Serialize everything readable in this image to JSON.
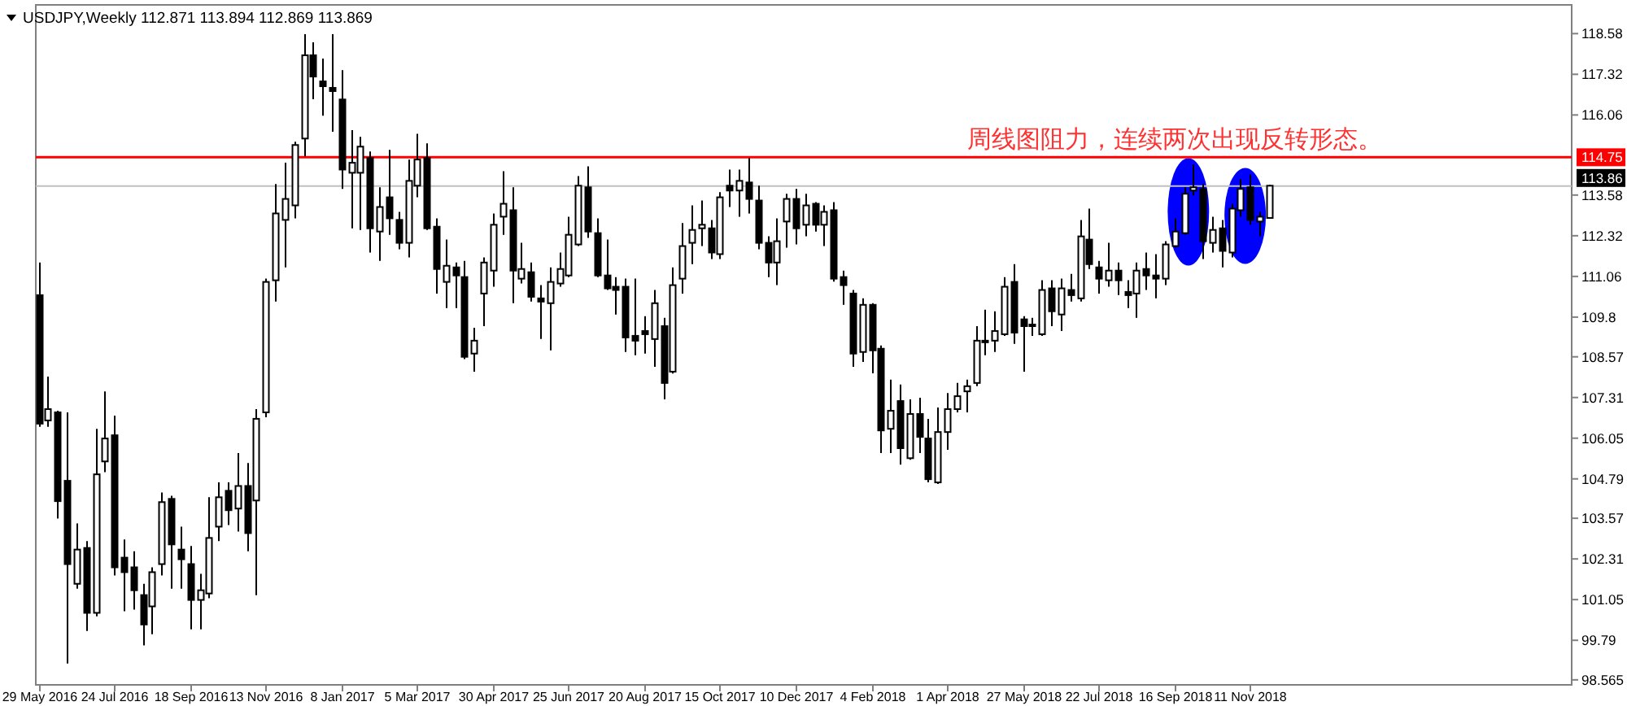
{
  "chart_data": {
    "type": "candlestick",
    "title": "USDJPY,Weekly 112.871 113.894 112.869 113.869",
    "x": [
      "2016-05-29",
      "2016-06-05",
      "2016-06-12",
      "2016-06-19",
      "2016-06-26",
      "2016-07-03",
      "2016-07-10",
      "2016-07-17",
      "2016-07-24",
      "2016-07-31",
      "2016-08-07",
      "2016-08-14",
      "2016-08-21",
      "2016-08-28",
      "2016-09-04",
      "2016-09-11",
      "2016-09-18",
      "2016-09-25",
      "2016-10-02",
      "2016-10-09",
      "2016-10-16",
      "2016-10-23",
      "2016-10-30",
      "2016-11-06",
      "2016-11-13",
      "2016-11-20",
      "2016-11-27",
      "2016-12-04",
      "2016-12-11",
      "2016-12-18",
      "2016-12-25",
      "2017-01-01",
      "2017-01-08",
      "2017-01-15",
      "2017-01-22",
      "2017-01-29",
      "2017-02-05",
      "2017-02-12",
      "2017-02-19",
      "2017-02-26",
      "2017-03-05",
      "2017-03-12",
      "2017-03-19",
      "2017-03-26",
      "2017-04-02",
      "2017-04-09",
      "2017-04-16",
      "2017-04-23",
      "2017-04-30",
      "2017-05-07",
      "2017-05-14",
      "2017-05-21",
      "2017-05-28",
      "2017-06-04",
      "2017-06-11",
      "2017-06-18",
      "2017-06-25",
      "2017-07-02",
      "2017-07-09",
      "2017-07-16",
      "2017-07-23",
      "2017-07-30",
      "2017-08-06",
      "2017-08-13",
      "2017-08-20",
      "2017-08-27",
      "2017-09-03",
      "2017-09-10",
      "2017-09-17",
      "2017-09-24",
      "2017-10-01",
      "2017-10-08",
      "2017-10-15",
      "2017-10-22",
      "2017-10-29",
      "2017-11-05",
      "2017-11-12",
      "2017-11-19",
      "2017-11-26",
      "2017-12-03",
      "2017-12-10",
      "2017-12-17",
      "2017-12-24",
      "2017-12-31",
      "2018-01-07",
      "2018-01-14",
      "2018-01-21",
      "2018-01-28",
      "2018-02-04",
      "2018-02-11",
      "2018-02-18",
      "2018-02-25",
      "2018-03-04",
      "2018-03-11",
      "2018-03-18",
      "2018-03-25",
      "2018-04-01",
      "2018-04-08",
      "2018-04-15",
      "2018-04-22",
      "2018-04-29",
      "2018-05-06",
      "2018-05-13",
      "2018-05-20",
      "2018-05-27",
      "2018-06-03",
      "2018-06-10",
      "2018-06-17",
      "2018-06-24",
      "2018-07-01",
      "2018-07-08",
      "2018-07-15",
      "2018-07-22",
      "2018-07-29",
      "2018-08-05",
      "2018-08-12",
      "2018-08-19",
      "2018-08-26",
      "2018-09-02",
      "2018-09-09",
      "2018-09-16",
      "2018-09-23",
      "2018-09-30",
      "2018-10-07",
      "2018-10-14",
      "2018-10-21",
      "2018-10-28",
      "2018-11-04",
      "2018-11-11",
      "2018-11-18",
      "2018-11-25"
    ],
    "ohlc": [
      [
        110.48,
        111.49,
        106.4,
        106.5
      ],
      [
        106.6,
        107.96,
        106.4,
        106.95
      ],
      [
        106.85,
        106.9,
        103.56,
        104.1
      ],
      [
        104.73,
        106.85,
        99.07,
        102.15
      ],
      [
        101.54,
        103.41,
        101.39,
        102.6
      ],
      [
        102.65,
        102.86,
        100.08,
        100.64
      ],
      [
        100.64,
        106.34,
        100.53,
        104.93
      ],
      [
        105.33,
        107.5,
        105.0,
        106.04
      ],
      [
        106.14,
        106.75,
        101.8,
        102.05
      ],
      [
        102.35,
        102.91,
        100.69,
        101.9
      ],
      [
        102.05,
        102.55,
        100.74,
        101.34
      ],
      [
        101.19,
        101.54,
        99.63,
        100.28
      ],
      [
        100.84,
        102.05,
        99.98,
        101.9
      ],
      [
        102.15,
        104.37,
        101.8,
        104.07
      ],
      [
        104.17,
        104.27,
        101.39,
        102.76
      ],
      [
        102.6,
        103.31,
        101.39,
        102.3
      ],
      [
        102.15,
        102.71,
        100.13,
        101.04
      ],
      [
        101.04,
        101.85,
        100.13,
        101.34
      ],
      [
        101.24,
        104.22,
        101.09,
        102.96
      ],
      [
        103.31,
        104.68,
        102.86,
        104.22
      ],
      [
        104.42,
        104.68,
        103.36,
        103.82
      ],
      [
        103.87,
        105.59,
        103.16,
        104.57
      ],
      [
        104.57,
        105.28,
        102.55,
        103.11
      ],
      [
        104.12,
        106.95,
        101.19,
        106.65
      ],
      [
        106.85,
        110.99,
        106.7,
        110.89
      ],
      [
        110.94,
        113.92,
        110.28,
        113.01
      ],
      [
        112.81,
        114.58,
        111.34,
        113.46
      ],
      [
        113.26,
        115.23,
        112.86,
        115.13
      ],
      [
        115.33,
        118.56,
        114.78,
        117.91
      ],
      [
        117.91,
        118.31,
        116.55,
        117.25
      ],
      [
        117.1,
        117.81,
        116.04,
        116.95
      ],
      [
        116.9,
        118.56,
        115.54,
        116.8
      ],
      [
        116.54,
        117.45,
        113.77,
        114.37
      ],
      [
        114.27,
        115.59,
        112.55,
        114.58
      ],
      [
        114.27,
        115.38,
        112.5,
        115.08
      ],
      [
        114.73,
        114.93,
        111.8,
        112.55
      ],
      [
        112.45,
        113.82,
        111.54,
        113.21
      ],
      [
        113.51,
        114.98,
        112.35,
        112.86
      ],
      [
        112.81,
        113.06,
        111.9,
        112.1
      ],
      [
        112.1,
        114.68,
        111.65,
        114.02
      ],
      [
        113.87,
        115.48,
        113.51,
        114.68
      ],
      [
        114.73,
        115.18,
        112.5,
        112.55
      ],
      [
        112.6,
        112.86,
        110.53,
        111.29
      ],
      [
        110.89,
        112.2,
        110.08,
        111.39
      ],
      [
        111.34,
        111.49,
        110.08,
        111.09
      ],
      [
        111.04,
        111.54,
        108.5,
        108.57
      ],
      [
        108.67,
        109.47,
        108.11,
        109.07
      ],
      [
        110.53,
        111.65,
        109.52,
        111.49
      ],
      [
        111.24,
        113.01,
        110.74,
        112.66
      ],
      [
        112.91,
        114.32,
        112.35,
        113.31
      ],
      [
        113.11,
        113.82,
        110.23,
        111.24
      ],
      [
        110.99,
        112.1,
        110.84,
        111.29
      ],
      [
        111.19,
        111.49,
        110.28,
        110.43
      ],
      [
        110.38,
        110.79,
        109.12,
        110.28
      ],
      [
        110.23,
        111.34,
        108.77,
        110.89
      ],
      [
        110.84,
        111.8,
        110.74,
        111.29
      ],
      [
        111.09,
        112.91,
        111.04,
        112.35
      ],
      [
        112.05,
        114.17,
        112.0,
        113.87
      ],
      [
        113.82,
        114.47,
        112.25,
        112.45
      ],
      [
        112.4,
        112.86,
        111.04,
        111.09
      ],
      [
        111.09,
        112.2,
        110.64,
        110.69
      ],
      [
        110.74,
        111.04,
        109.88,
        110.64
      ],
      [
        110.74,
        110.99,
        108.72,
        109.17
      ],
      [
        109.22,
        110.99,
        108.62,
        109.07
      ],
      [
        109.37,
        109.83,
        108.67,
        109.27
      ],
      [
        109.12,
        110.64,
        108.26,
        110.23
      ],
      [
        109.52,
        109.78,
        107.25,
        107.76
      ],
      [
        108.11,
        111.34,
        108.05,
        110.79
      ],
      [
        110.99,
        112.71,
        110.53,
        112.0
      ],
      [
        112.1,
        113.26,
        111.44,
        112.5
      ],
      [
        112.55,
        113.41,
        112.0,
        112.66
      ],
      [
        112.55,
        112.81,
        111.6,
        111.8
      ],
      [
        111.75,
        113.67,
        111.6,
        113.51
      ],
      [
        113.87,
        114.37,
        113.21,
        113.72
      ],
      [
        113.72,
        114.37,
        112.91,
        114.02
      ],
      [
        113.97,
        114.73,
        113.01,
        113.46
      ],
      [
        113.41,
        113.87,
        111.9,
        112.1
      ],
      [
        112.1,
        112.3,
        111.04,
        111.49
      ],
      [
        111.49,
        112.86,
        110.79,
        112.15
      ],
      [
        112.76,
        113.62,
        111.95,
        113.46
      ],
      [
        113.46,
        113.77,
        112.05,
        112.55
      ],
      [
        112.66,
        113.62,
        112.3,
        113.26
      ],
      [
        113.31,
        113.36,
        112.45,
        112.66
      ],
      [
        112.66,
        113.26,
        112.0,
        113.06
      ],
      [
        113.11,
        113.36,
        110.9,
        110.99
      ],
      [
        111.04,
        111.24,
        110.18,
        110.79
      ],
      [
        110.53,
        110.64,
        108.26,
        108.67
      ],
      [
        108.72,
        110.38,
        108.41,
        110.18
      ],
      [
        110.18,
        110.23,
        108.06,
        108.77
      ],
      [
        108.82,
        108.92,
        105.59,
        106.29
      ],
      [
        106.34,
        107.86,
        105.59,
        106.9
      ],
      [
        107.2,
        107.71,
        105.23,
        105.74
      ],
      [
        105.43,
        107.25,
        105.38,
        106.8
      ],
      [
        106.8,
        107.3,
        105.59,
        106.09
      ],
      [
        106.04,
        106.65,
        104.68,
        104.78
      ],
      [
        104.68,
        107.0,
        104.63,
        106.24
      ],
      [
        106.24,
        107.45,
        105.69,
        106.95
      ],
      [
        106.95,
        107.76,
        106.85,
        107.35
      ],
      [
        107.5,
        107.86,
        106.85,
        107.66
      ],
      [
        107.76,
        109.52,
        107.66,
        109.07
      ],
      [
        109.02,
        110.03,
        108.62,
        109.07
      ],
      [
        109.07,
        109.98,
        108.72,
        109.37
      ],
      [
        109.27,
        111.04,
        109.22,
        110.74
      ],
      [
        110.89,
        111.44,
        108.97,
        109.32
      ],
      [
        109.73,
        109.83,
        108.11,
        109.52
      ],
      [
        109.52,
        109.78,
        109.22,
        109.57
      ],
      [
        109.27,
        110.94,
        109.22,
        110.64
      ],
      [
        110.69,
        110.94,
        109.52,
        109.98
      ],
      [
        109.88,
        110.99,
        109.37,
        110.69
      ],
      [
        110.64,
        111.14,
        110.28,
        110.48
      ],
      [
        110.38,
        112.81,
        110.28,
        112.3
      ],
      [
        112.2,
        113.16,
        111.29,
        111.44
      ],
      [
        111.34,
        111.54,
        110.53,
        110.99
      ],
      [
        110.94,
        112.1,
        110.74,
        111.24
      ],
      [
        111.24,
        111.49,
        110.48,
        110.94
      ],
      [
        110.58,
        110.94,
        110.08,
        110.48
      ],
      [
        110.53,
        111.49,
        109.78,
        111.24
      ],
      [
        111.29,
        111.8,
        110.64,
        111.09
      ],
      [
        111.09,
        111.75,
        110.38,
        110.99
      ],
      [
        110.99,
        112.15,
        110.79,
        112.05
      ],
      [
        112.0,
        112.86,
        111.95,
        112.45
      ],
      [
        112.4,
        113.82,
        112.35,
        113.62
      ],
      [
        113.72,
        114.52,
        113.56,
        113.82
      ],
      [
        113.77,
        113.92,
        111.6,
        112.15
      ],
      [
        112.1,
        112.91,
        111.8,
        112.5
      ],
      [
        112.55,
        112.81,
        111.34,
        111.85
      ],
      [
        111.8,
        113.31,
        111.65,
        113.16
      ],
      [
        113.11,
        114.07,
        112.91,
        113.77
      ],
      [
        113.82,
        114.22,
        112.66,
        112.81
      ],
      [
        112.76,
        113.06,
        112.3,
        112.91
      ],
      [
        112.871,
        113.894,
        112.869,
        113.869
      ]
    ],
    "xlim": [
      "2016-05-27",
      "2019-07-07"
    ],
    "ylim": [
      98.41,
      119.47
    ],
    "xticks": [
      {
        "value": "2016-05-29",
        "label": "29 May 2016"
      },
      {
        "value": "2016-07-24",
        "label": "24 Jul 2016"
      },
      {
        "value": "2016-09-18",
        "label": "18 Sep 2016"
      },
      {
        "value": "2016-11-13",
        "label": "13 Nov 2016"
      },
      {
        "value": "2017-01-08",
        "label": "8 Jan 2017"
      },
      {
        "value": "2017-03-05",
        "label": "5 Mar 2017"
      },
      {
        "value": "2017-04-30",
        "label": "30 Apr 2017"
      },
      {
        "value": "2017-06-25",
        "label": "25 Jun 2017"
      },
      {
        "value": "2017-08-20",
        "label": "20 Aug 2017"
      },
      {
        "value": "2017-10-15",
        "label": "15 Oct 2017"
      },
      {
        "value": "2017-12-10",
        "label": "10 Dec 2017"
      },
      {
        "value": "2018-02-04",
        "label": "4 Feb 2018"
      },
      {
        "value": "2018-04-01",
        "label": "1 Apr 2018"
      },
      {
        "value": "2018-05-27",
        "label": "27 May 2018"
      },
      {
        "value": "2018-07-22",
        "label": "22 Jul 2018"
      },
      {
        "value": "2018-09-16",
        "label": "16 Sep 2018"
      },
      {
        "value": "2018-11-11",
        "label": "11 Nov 2018"
      }
    ],
    "yticks": [
      98.565,
      99.79,
      101.05,
      102.31,
      103.57,
      104.79,
      106.05,
      107.31,
      108.57,
      109.8,
      111.06,
      112.32,
      113.58,
      116.06,
      117.32,
      118.58
    ],
    "ref_lines": [
      {
        "axis": "y",
        "value": 114.75,
        "label": "114.75",
        "color": "#ff0000"
      },
      {
        "axis": "y",
        "value": 113.86,
        "label": "113.86",
        "color": "#c0c0c0"
      }
    ],
    "annotations": [
      {
        "text": "周线图阻力，连续两次出现反转形态。",
        "x": "2018-04-15",
        "y": 114.75
      }
    ]
  }
}
